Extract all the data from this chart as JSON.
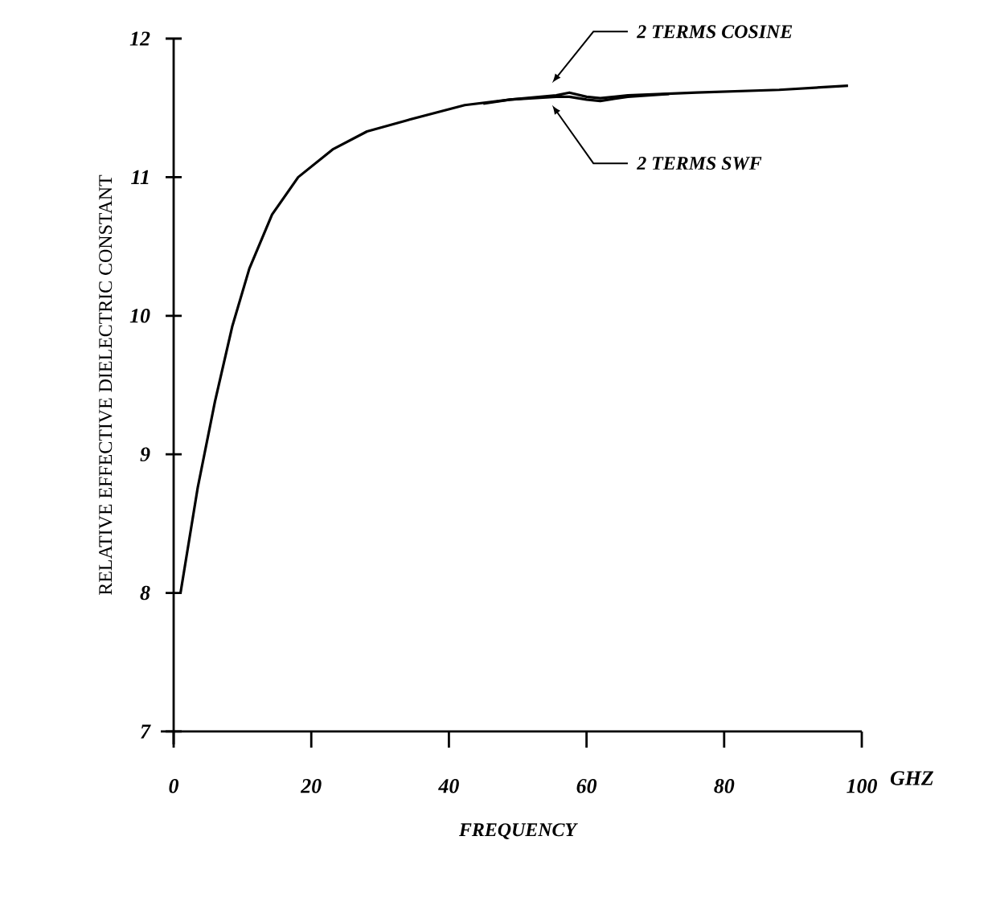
{
  "chart_data": {
    "type": "line",
    "xlabel": "FREQUENCY",
    "ylabel": "RELATIVE EFFECTIVE DIELECTRIC CONSTANT",
    "annotations": [
      "GHZ"
    ],
    "xlim": [
      0,
      100
    ],
    "xticks": [
      0,
      20,
      40,
      60,
      80,
      100
    ],
    "ylim": [
      7,
      12
    ],
    "yticks": [
      7,
      8,
      9,
      10,
      11,
      12
    ],
    "grid": false,
    "legend": false,
    "marker": "none",
    "line_style": "solid",
    "series": [
      {
        "name": "2 TERMS COSINE",
        "color": "#000000",
        "x": [
          1,
          3.5,
          6,
          8.5,
          11,
          14.3,
          18.1,
          23.1,
          28.1,
          33.9,
          42.3,
          48.9,
          55.6,
          57.5,
          60,
          62,
          66,
          76,
          88,
          98
        ],
        "values": [
          8.0,
          8.76,
          9.38,
          9.92,
          10.34,
          10.73,
          11.0,
          11.2,
          11.33,
          11.41,
          11.52,
          11.56,
          11.59,
          11.61,
          11.58,
          11.57,
          11.59,
          11.61,
          11.63,
          11.66
        ]
      },
      {
        "name": "2 TERMS SWF",
        "color": "#000000",
        "x": [
          45,
          48.9,
          55.6,
          57.5,
          60,
          62,
          66,
          72
        ],
        "values": [
          11.53,
          11.56,
          11.58,
          11.58,
          11.56,
          11.55,
          11.58,
          11.6
        ]
      }
    ]
  }
}
